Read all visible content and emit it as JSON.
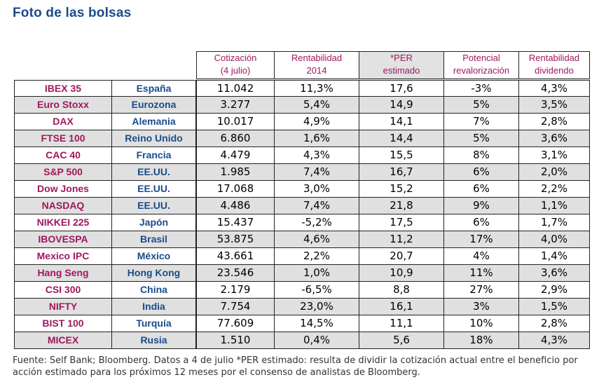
{
  "title": "Foto de las bolsas",
  "headers": {
    "cotizacion": [
      "Cotización",
      "(4 julio)"
    ],
    "rentabilidad": [
      "Rentabilidad",
      "2014"
    ],
    "per": [
      "*PER",
      "estimado"
    ],
    "potencial": [
      "Potencial",
      "revalorización"
    ],
    "dividendo": [
      "Rentabilidad",
      "dividendo"
    ]
  },
  "rows": [
    {
      "indice": "IBEX 35",
      "pais": "España",
      "cotizacion": "11.042",
      "rentabilidad": "11,3%",
      "per": "17,6",
      "potencial": "-3%",
      "dividendo": "4,3%"
    },
    {
      "indice": "Euro Stoxx",
      "pais": "Eurozona",
      "cotizacion": "3.277",
      "rentabilidad": "5,4%",
      "per": "14,9",
      "potencial": "5%",
      "dividendo": "3,5%"
    },
    {
      "indice": "DAX",
      "pais": "Alemania",
      "cotizacion": "10.017",
      "rentabilidad": "4,9%",
      "per": "14,1",
      "potencial": "7%",
      "dividendo": "2,8%"
    },
    {
      "indice": "FTSE 100",
      "pais": "Reino Unido",
      "cotizacion": "6.860",
      "rentabilidad": "1,6%",
      "per": "14,4",
      "potencial": "5%",
      "dividendo": "3,6%"
    },
    {
      "indice": "CAC 40",
      "pais": "Francia",
      "cotizacion": "4.479",
      "rentabilidad": "4,3%",
      "per": "15,5",
      "potencial": "8%",
      "dividendo": "3,1%"
    },
    {
      "indice": "S&P 500",
      "pais": "EE.UU.",
      "cotizacion": "1.985",
      "rentabilidad": "7,4%",
      "per": "16,7",
      "potencial": "6%",
      "dividendo": "2,0%"
    },
    {
      "indice": "Dow Jones",
      "pais": "EE.UU.",
      "cotizacion": "17.068",
      "rentabilidad": "3,0%",
      "per": "15,2",
      "potencial": "6%",
      "dividendo": "2,2%"
    },
    {
      "indice": "NASDAQ",
      "pais": "EE.UU.",
      "cotizacion": "4.486",
      "rentabilidad": "7,4%",
      "per": "21,8",
      "potencial": "9%",
      "dividendo": "1,1%"
    },
    {
      "indice": "NIKKEI 225",
      "pais": "Japón",
      "cotizacion": "15.437",
      "rentabilidad": "-5,2%",
      "per": "17,5",
      "potencial": "6%",
      "dividendo": "1,7%"
    },
    {
      "indice": "IBOVESPA",
      "pais": "Brasil",
      "cotizacion": "53.875",
      "rentabilidad": "4,6%",
      "per": "11,2",
      "potencial": "17%",
      "dividendo": "4,0%"
    },
    {
      "indice": "Mexico IPC",
      "pais": "México",
      "cotizacion": "43.661",
      "rentabilidad": "2,2%",
      "per": "20,7",
      "potencial": "4%",
      "dividendo": "1,4%"
    },
    {
      "indice": "Hang Seng",
      "pais": "Hong Kong",
      "cotizacion": "23.546",
      "rentabilidad": "1,0%",
      "per": "10,9",
      "potencial": "11%",
      "dividendo": "3,6%"
    },
    {
      "indice": "CSI 300",
      "pais": "China",
      "cotizacion": "2.179",
      "rentabilidad": "-6,5%",
      "per": "8,8",
      "potencial": "27%",
      "dividendo": "2,9%"
    },
    {
      "indice": "NIFTY",
      "pais": "India",
      "cotizacion": "7.754",
      "rentabilidad": "23,0%",
      "per": "16,1",
      "potencial": "3%",
      "dividendo": "1,5%"
    },
    {
      "indice": "BIST 100",
      "pais": "Turquía",
      "cotizacion": "77.609",
      "rentabilidad": "14,5%",
      "per": "11,1",
      "potencial": "10%",
      "dividendo": "2,8%"
    },
    {
      "indice": "MICEX",
      "pais": "Rusia",
      "cotizacion": "1.510",
      "rentabilidad": "0,4%",
      "per": "5,6",
      "potencial": "18%",
      "dividendo": "4,3%"
    }
  ],
  "footer": "Fuente: Self Bank; Bloomberg. Datos a 4 de julio *PER estimado: resulta de dividir la cotización actual entre el beneficio por acción estimado para los próximos 12 meses por el consenso de analistas de Bloomberg."
}
